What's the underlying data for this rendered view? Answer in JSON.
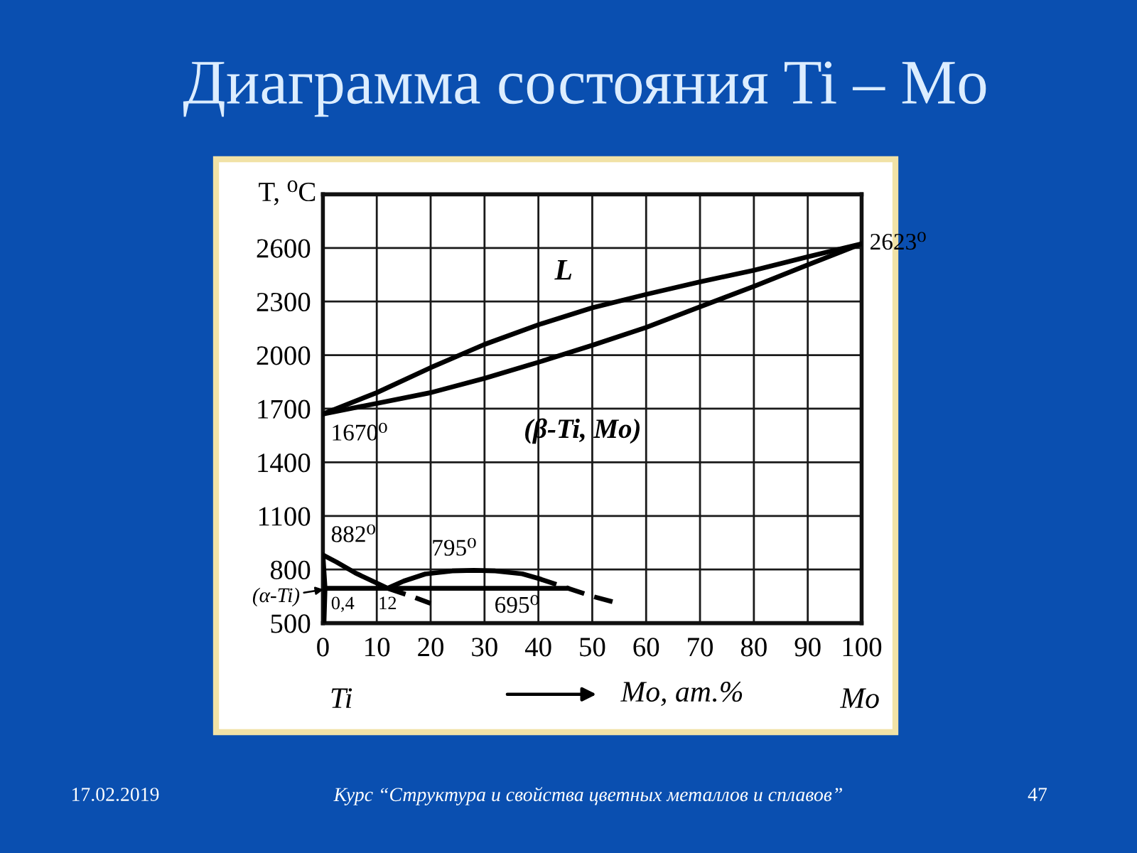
{
  "chart_data": {
    "type": "line",
    "title": "Диаграмма состояния Ti – Mo",
    "xlabel": "Mo, ат.%",
    "ylabel": "T, ⁰C",
    "xlim": [
      0,
      100
    ],
    "ylim": [
      500,
      2900
    ],
    "xticks": [
      0,
      10,
      20,
      30,
      40,
      50,
      60,
      70,
      80,
      90,
      100
    ],
    "yticks": [
      500,
      800,
      1100,
      1400,
      1700,
      2000,
      2300,
      2600
    ],
    "grid": true,
    "series": [
      {
        "color": "#000000",
        "line_style": "solid",
        "x": [
          0,
          10,
          20,
          30,
          40,
          50,
          60,
          70,
          80,
          90,
          100
        ],
        "values": [
          1670,
          1790,
          1930,
          2060,
          2170,
          2265,
          2340,
          2410,
          2475,
          2550,
          2623
        ]
      },
      {
        "color": "#000000",
        "line_style": "solid",
        "x": [
          0,
          10,
          20,
          30,
          40,
          50,
          60,
          70,
          80,
          90,
          100
        ],
        "values": [
          1670,
          1730,
          1790,
          1870,
          1960,
          2055,
          2155,
          2270,
          2385,
          2505,
          2623
        ]
      },
      {
        "color": "#000000",
        "line_style": "solid",
        "x": [
          0,
          2.5,
          6,
          9.5,
          12
        ],
        "values": [
          882,
          842,
          781,
          731,
          695
        ]
      },
      {
        "color": "#000000",
        "line_style": "dashed",
        "x": [
          12,
          16.5,
          20
        ],
        "values": [
          695,
          650,
          610
        ]
      },
      {
        "color": "#000000",
        "line_style": "solid",
        "x": [
          12,
          15,
          19,
          24,
          28,
          32,
          37,
          40
        ],
        "values": [
          695,
          735,
          775,
          792,
          795,
          792,
          776,
          750
        ]
      },
      {
        "color": "#000000",
        "line_style": "dashed",
        "x": [
          40,
          45.5,
          50,
          54
        ],
        "values": [
          750,
          695,
          650,
          618
        ]
      },
      {
        "color": "#000000",
        "line_style": "solid",
        "x": [
          0.4,
          45.5
        ],
        "values": [
          695,
          695
        ]
      },
      {
        "color": "#000000",
        "line_style": "solid",
        "x": [
          0,
          0.4,
          0.2
        ],
        "values": [
          882,
          695,
          500
        ]
      }
    ],
    "annotations": [
      "L",
      "(β-Ti, Mo)",
      {
        "text": "1670⁰",
        "x": 0,
        "y": 1670
      },
      {
        "text": "2623⁰",
        "x": 100,
        "y": 2623
      },
      {
        "text": "882⁰",
        "x": 0,
        "y": 882
      },
      {
        "text": "795⁰",
        "x": 28,
        "y": 795
      },
      {
        "text": "695⁰",
        "x": 36,
        "y": 695
      },
      {
        "text": "0,4",
        "x": 0.4,
        "y": 695
      },
      {
        "text": "12",
        "x": 12,
        "y": 695
      },
      {
        "text": "(α-Ti)",
        "x": 0.5,
        "y": 690
      },
      "Ti",
      "Mo",
      "17.02.2019",
      "Курс “Структура и свойства цветных металлов и сплавов”",
      "47"
    ]
  }
}
